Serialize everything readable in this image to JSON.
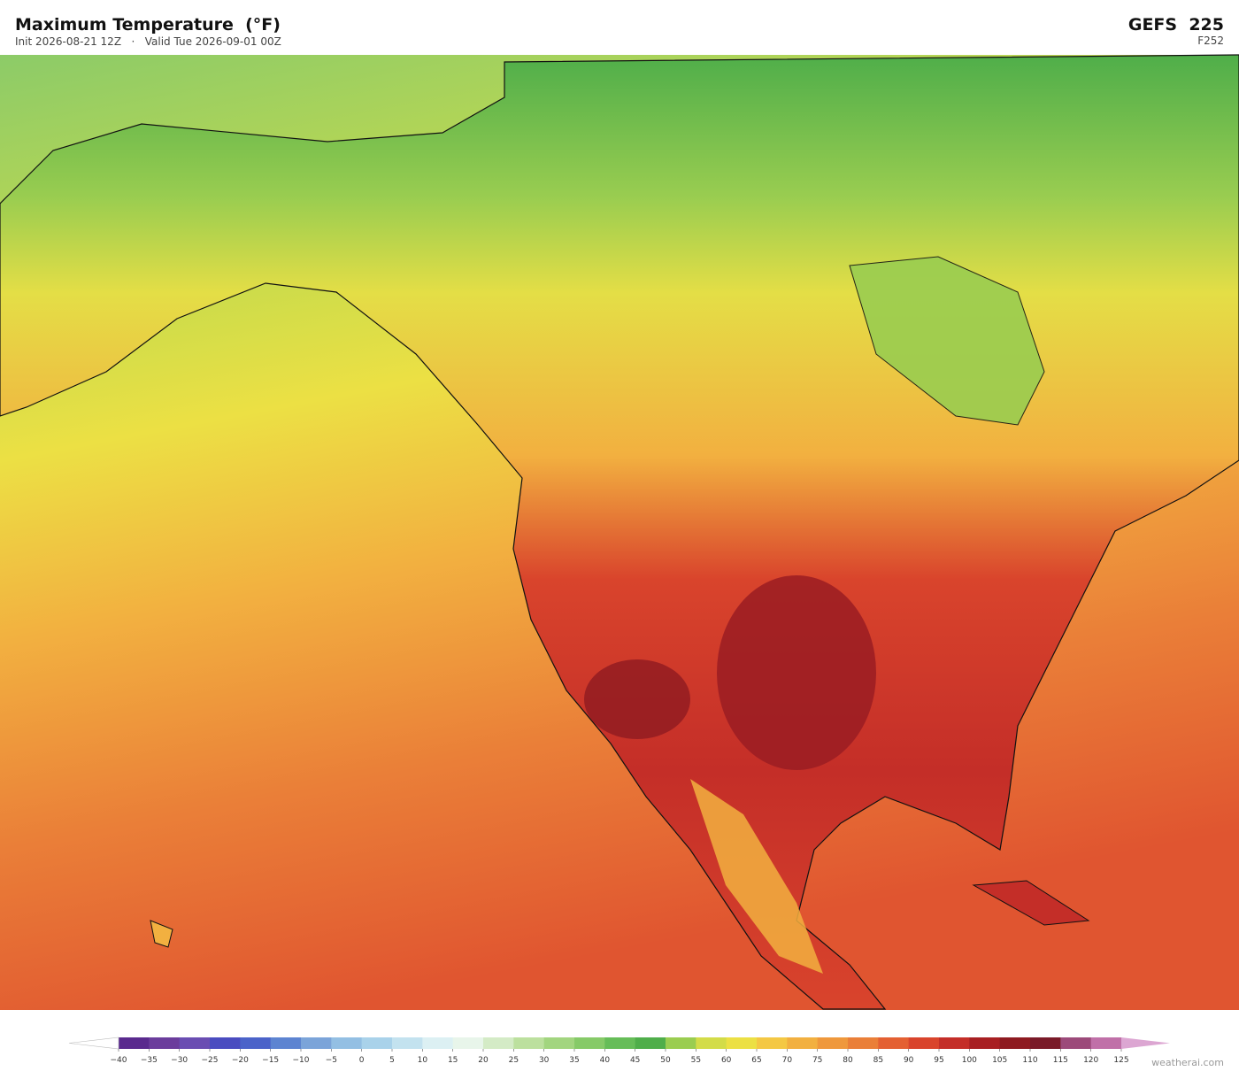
{
  "header": {
    "title": "Maximum Temperature  (°F)",
    "subtitle": "Init 2026-08-21 12Z   ·   Valid Tue 2026-09-01 00Z",
    "model": "GEFS  225",
    "forecast_hour": "F252"
  },
  "colorbar": {
    "ticks": [
      {
        "value": -40,
        "label": "−40"
      },
      {
        "value": -35,
        "label": "−35"
      },
      {
        "value": -30,
        "label": "−30"
      },
      {
        "value": -25,
        "label": "−25"
      },
      {
        "value": -20,
        "label": "−20"
      },
      {
        "value": -15,
        "label": "−15"
      },
      {
        "value": -10,
        "label": "−10"
      },
      {
        "value": -5,
        "label": "−5"
      },
      0,
      5,
      10,
      15,
      20,
      25,
      30,
      35,
      40,
      45,
      50,
      55,
      60,
      65,
      70,
      75,
      80,
      85,
      90,
      95,
      100,
      105,
      110,
      115,
      120,
      125
    ],
    "colors": [
      "#5a2a8e",
      "#6b3d9c",
      "#6a4db2",
      "#4a4cc0",
      "#4b63c9",
      "#5d84d1",
      "#7ba4d9",
      "#93bfe3",
      "#a9d2ea",
      "#c3e2ef",
      "#dcf0f3",
      "#e8f5ea",
      "#d4ebc6",
      "#bce09e",
      "#a2d57f",
      "#86ca68",
      "#66bd58",
      "#4fae4a",
      "#9acd50",
      "#d3dc48",
      "#ece044",
      "#f4c844",
      "#f2b040",
      "#ef983c",
      "#ea7f38",
      "#e46032",
      "#d9442c",
      "#c42e28",
      "#a81f22",
      "#8e1a20",
      "#7a1a28",
      "#9c4a7a",
      "#c070a8"
    ],
    "extend_colors": [
      "#ffffff",
      "#dca6d2"
    ]
  },
  "watermark": "weatherai.com"
}
